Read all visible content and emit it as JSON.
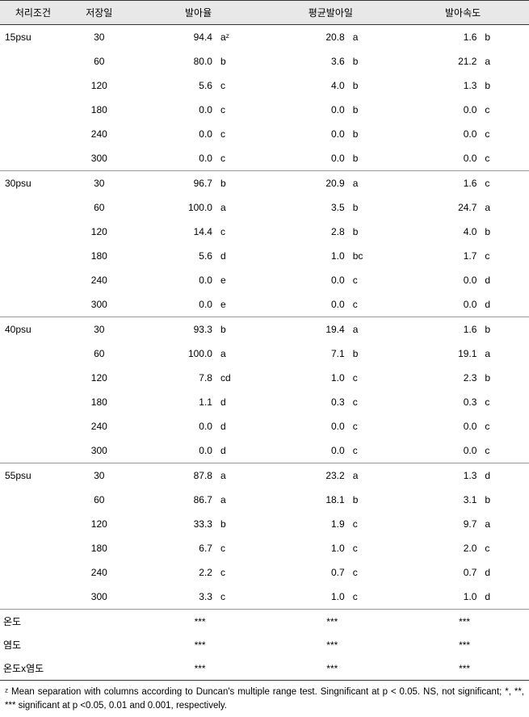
{
  "columns": [
    "처리조건",
    "저장일",
    "발아율",
    "평균발아일",
    "발아속도"
  ],
  "groups": [
    {
      "condition": "15psu",
      "rows": [
        {
          "day": 30,
          "v1": "94.4",
          "l1": "aᶻ",
          "v2": "20.8",
          "l2": "a",
          "v3": "1.6",
          "l3": "b"
        },
        {
          "day": 60,
          "v1": "80.0",
          "l1": "b",
          "v2": "3.6",
          "l2": "b",
          "v3": "21.2",
          "l3": "a"
        },
        {
          "day": 120,
          "v1": "5.6",
          "l1": "c",
          "v2": "4.0",
          "l2": "b",
          "v3": "1.3",
          "l3": "b"
        },
        {
          "day": 180,
          "v1": "0.0",
          "l1": "c",
          "v2": "0.0",
          "l2": "b",
          "v3": "0.0",
          "l3": "c"
        },
        {
          "day": 240,
          "v1": "0.0",
          "l1": "c",
          "v2": "0.0",
          "l2": "b",
          "v3": "0.0",
          "l3": "c"
        },
        {
          "day": 300,
          "v1": "0.0",
          "l1": "c",
          "v2": "0.0",
          "l2": "b",
          "v3": "0.0",
          "l3": "c"
        }
      ]
    },
    {
      "condition": "30psu",
      "rows": [
        {
          "day": 30,
          "v1": "96.7",
          "l1": "b",
          "v2": "20.9",
          "l2": "a",
          "v3": "1.6",
          "l3": "c"
        },
        {
          "day": 60,
          "v1": "100.0",
          "l1": "a",
          "v2": "3.5",
          "l2": "b",
          "v3": "24.7",
          "l3": "a"
        },
        {
          "day": 120,
          "v1": "14.4",
          "l1": "c",
          "v2": "2.8",
          "l2": "b",
          "v3": "4.0",
          "l3": "b"
        },
        {
          "day": 180,
          "v1": "5.6",
          "l1": "d",
          "v2": "1.0",
          "l2": "bc",
          "v3": "1.7",
          "l3": "c"
        },
        {
          "day": 240,
          "v1": "0.0",
          "l1": "e",
          "v2": "0.0",
          "l2": "c",
          "v3": "0.0",
          "l3": "d"
        },
        {
          "day": 300,
          "v1": "0.0",
          "l1": "e",
          "v2": "0.0",
          "l2": "c",
          "v3": "0.0",
          "l3": "d"
        }
      ]
    },
    {
      "condition": "40psu",
      "rows": [
        {
          "day": 30,
          "v1": "93.3",
          "l1": "b",
          "v2": "19.4",
          "l2": "a",
          "v3": "1.6",
          "l3": "b"
        },
        {
          "day": 60,
          "v1": "100.0",
          "l1": "a",
          "v2": "7.1",
          "l2": "b",
          "v3": "19.1",
          "l3": "a"
        },
        {
          "day": 120,
          "v1": "7.8",
          "l1": "cd",
          "v2": "1.0",
          "l2": "c",
          "v3": "2.3",
          "l3": "b"
        },
        {
          "day": 180,
          "v1": "1.1",
          "l1": "d",
          "v2": "0.3",
          "l2": "c",
          "v3": "0.3",
          "l3": "c"
        },
        {
          "day": 240,
          "v1": "0.0",
          "l1": "d",
          "v2": "0.0",
          "l2": "c",
          "v3": "0.0",
          "l3": "c"
        },
        {
          "day": 300,
          "v1": "0.0",
          "l1": "d",
          "v2": "0.0",
          "l2": "c",
          "v3": "0.0",
          "l3": "c"
        }
      ]
    },
    {
      "condition": "55psu",
      "rows": [
        {
          "day": 30,
          "v1": "87.8",
          "l1": "a",
          "v2": "23.2",
          "l2": "a",
          "v3": "1.3",
          "l3": "d"
        },
        {
          "day": 60,
          "v1": "86.7",
          "l1": "a",
          "v2": "18.1",
          "l2": "b",
          "v3": "3.1",
          "l3": "b"
        },
        {
          "day": 120,
          "v1": "33.3",
          "l1": "b",
          "v2": "1.9",
          "l2": "c",
          "v3": "9.7",
          "l3": "a"
        },
        {
          "day": 180,
          "v1": "6.7",
          "l1": "c",
          "v2": "1.0",
          "l2": "c",
          "v3": "2.0",
          "l3": "c"
        },
        {
          "day": 240,
          "v1": "2.2",
          "l1": "c",
          "v2": "0.7",
          "l2": "c",
          "v3": "0.7",
          "l3": "d"
        },
        {
          "day": 300,
          "v1": "3.3",
          "l1": "c",
          "v2": "1.0",
          "l2": "c",
          "v3": "1.0",
          "l3": "d"
        }
      ]
    }
  ],
  "significance": [
    {
      "label": "온도",
      "s1": "***",
      "s2": "***",
      "s3": "***"
    },
    {
      "label": "염도",
      "s1": "***",
      "s2": "***",
      "s3": "***"
    },
    {
      "label": "온도x염도",
      "s1": "***",
      "s2": "***",
      "s3": "***"
    }
  ],
  "footnote": "ᶻ Mean separation with columns according to Duncan's multiple range test. Singnificant at p < 0.05. NS, not significant; *, **, *** significant at p <0.05, 0.01 and 0.001, respectively.",
  "style": {
    "header_bg": "#e8e8e8",
    "border_major": "#333333",
    "border_minor": "#999999",
    "font_size_body": 12,
    "font_size_footnote": 11.5
  }
}
